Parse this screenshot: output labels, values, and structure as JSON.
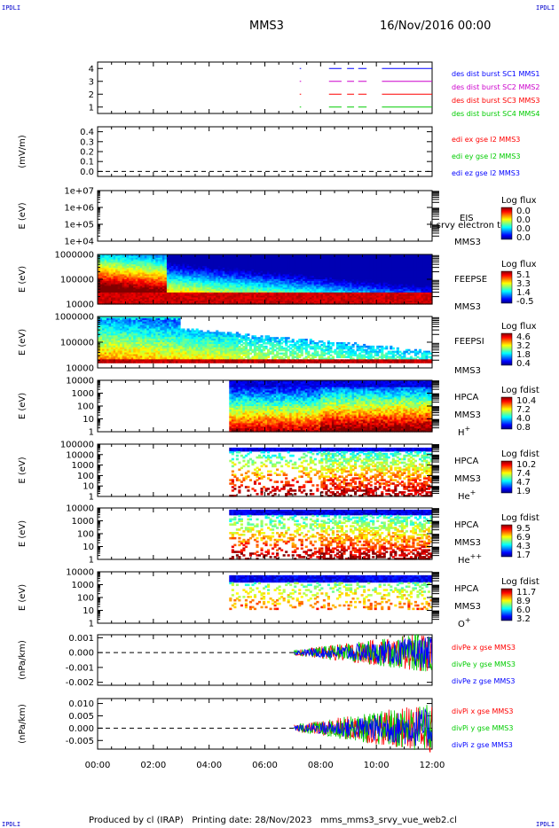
{
  "header": {
    "corner_text": "IPDLI",
    "title": "MMS3",
    "date": "16/Nov/2016 00:00"
  },
  "footer": {
    "text": "Produced by cl (IRAP)   Printing date: 28/Nov/2023   mms_mms3_srvy_vue_web2.cl"
  },
  "colors": {
    "blue": "#0000ff",
    "green": "#00cc00",
    "red": "#ff0000",
    "magenta": "#ff00ff"
  },
  "chart_data": [
    {
      "id": "burst",
      "type": "line",
      "ylim": [
        0.5,
        4.5
      ],
      "yticks": [
        "1",
        "2",
        "3",
        "4"
      ],
      "series": [
        {
          "name": "des dist burst SC1 MMS1",
          "color": "#0000ff",
          "y": 4,
          "segments": [
            [
              7.25,
              7.3
            ],
            [
              8.3,
              8.75
            ],
            [
              8.95,
              9.2
            ],
            [
              9.35,
              9.65
            ],
            [
              10.2,
              12.0
            ]
          ]
        },
        {
          "name": "des dist burst SC2 MMS2",
          "color": "#cc00cc",
          "y": 3,
          "segments": [
            [
              7.25,
              7.3
            ],
            [
              8.3,
              8.75
            ],
            [
              8.95,
              9.2
            ],
            [
              9.35,
              9.65
            ],
            [
              10.2,
              12.0
            ]
          ]
        },
        {
          "name": "des dist burst SC3 MMS3",
          "color": "#ff0000",
          "y": 2,
          "segments": [
            [
              7.25,
              7.3
            ],
            [
              8.3,
              8.75
            ],
            [
              8.95,
              9.2
            ],
            [
              9.35,
              9.65
            ],
            [
              10.2,
              12.0
            ]
          ]
        },
        {
          "name": "des dist burst SC4 MMS4",
          "color": "#00cc00",
          "y": 1,
          "segments": [
            [
              7.25,
              7.3
            ],
            [
              8.3,
              8.75
            ],
            [
              8.95,
              9.2
            ],
            [
              9.35,
              9.65
            ],
            [
              10.2,
              12.0
            ]
          ]
        }
      ]
    },
    {
      "id": "edi",
      "type": "line",
      "ylabel": "(mV/m)",
      "ylim": [
        -0.05,
        0.45
      ],
      "yticks": [
        "0.4",
        "0.3",
        "0.2",
        "0.1",
        "0.0"
      ],
      "reference_line": 0.0,
      "series": [
        {
          "name": "edi ex gse l2 MMS3",
          "color": "#ff0000"
        },
        {
          "name": "edi ey gse l2 MMS3",
          "color": "#00cc00"
        },
        {
          "name": "edi ez gse l2 MMS3",
          "color": "#0000ff"
        }
      ]
    },
    {
      "id": "eis",
      "type": "heatmap",
      "ylabel": "E (eV)",
      "yticks": [
        "1e+07",
        "1e+06",
        "1e+05",
        "1e+04"
      ],
      "instrument": "EIS",
      "overlay_text": "l_srvy electron to",
      "spacecraft": "MMS3",
      "colorbar": {
        "title": "Log flux",
        "ticks": [
          "0.0",
          "0.0",
          "0.0",
          "0.0"
        ]
      }
    },
    {
      "id": "feepse",
      "type": "heatmap",
      "ylabel": "E (eV)",
      "yticks": [
        "1000000",
        "100000",
        "10000"
      ],
      "instrument": "FEEPSE",
      "spacecraft": "MMS3",
      "data_start": 0.0,
      "colorbar": {
        "title": "Log flux",
        "ticks": [
          "5.1",
          "3.3",
          "1.4",
          "-0.5"
        ]
      }
    },
    {
      "id": "feepsi",
      "type": "heatmap",
      "ylabel": "E (eV)",
      "yticks": [
        "1000000",
        "100000",
        "10000"
      ],
      "instrument": "FEEPSI",
      "spacecraft": "MMS3",
      "data_start": 0.0,
      "colorbar": {
        "title": "Log flux",
        "ticks": [
          "4.6",
          "3.2",
          "1.8",
          "0.4"
        ]
      }
    },
    {
      "id": "hpca_h",
      "type": "heatmap",
      "ylabel": "E (eV)",
      "yticks": [
        "10000",
        "1000",
        "100",
        "10",
        "1"
      ],
      "instrument": "HPCA",
      "spacecraft": "MMS3",
      "species": "H",
      "species_sup": "+",
      "data_start": 4.75,
      "colorbar": {
        "title": "Log fdist",
        "ticks": [
          "10.4",
          "7.2",
          "4.0",
          "0.8"
        ]
      }
    },
    {
      "id": "hpca_he",
      "type": "heatmap",
      "ylabel": "E (eV)",
      "yticks": [
        "100000",
        "10000",
        "1000",
        "100",
        "10",
        "1"
      ],
      "instrument": "HPCA",
      "spacecraft": "MMS3",
      "species": "He",
      "species_sup": "+",
      "data_start": 4.75,
      "colorbar": {
        "title": "Log fdist",
        "ticks": [
          "10.2",
          "7.4",
          "4.7",
          "1.9"
        ]
      }
    },
    {
      "id": "hpca_he2",
      "type": "heatmap",
      "ylabel": "E (eV)",
      "yticks": [
        "10000",
        "1000",
        "100",
        "10",
        "1"
      ],
      "instrument": "HPCA",
      "spacecraft": "MMS3",
      "species": "He",
      "species_sup": "++",
      "data_start": 4.75,
      "colorbar": {
        "title": "Log fdist",
        "ticks": [
          "9.5",
          "6.9",
          "4.3",
          "1.7"
        ]
      }
    },
    {
      "id": "hpca_o",
      "type": "heatmap",
      "ylabel": "E (eV)",
      "yticks": [
        "10000",
        "1000",
        "100",
        "10",
        "1"
      ],
      "instrument": "HPCA",
      "spacecraft": "MMS3",
      "species": "O",
      "species_sup": "+",
      "data_start": 4.75,
      "colorbar": {
        "title": "Log fdist",
        "ticks": [
          "11.7",
          "8.9",
          "6.0",
          "3.2"
        ]
      }
    },
    {
      "id": "divpe",
      "type": "line",
      "ylabel": "(nPa/km)",
      "ylim": [
        -0.0022,
        0.0012
      ],
      "yticks": [
        "0.001",
        "0.000",
        "-0.001",
        "-0.002"
      ],
      "reference_line": 0.0,
      "data_start": 7.05,
      "series": [
        {
          "name": "divPe x gse MMS3",
          "color": "#ff0000"
        },
        {
          "name": "divPe y gse MMS3",
          "color": "#00cc00"
        },
        {
          "name": "divPe z gse MMS3",
          "color": "#0000ff"
        }
      ]
    },
    {
      "id": "divpi",
      "type": "line",
      "ylabel": "(nPa/km)",
      "ylim": [
        -0.0085,
        0.012
      ],
      "yticks": [
        "0.010",
        "0.005",
        "0.000",
        "-0.005"
      ],
      "reference_line": 0.0,
      "data_start": 7.05,
      "series": [
        {
          "name": "divPi x gse MMS3",
          "color": "#ff0000"
        },
        {
          "name": "divPi y gse MMS3",
          "color": "#00cc00"
        },
        {
          "name": "divPi z gse MMS3",
          "color": "#0000ff"
        }
      ]
    }
  ],
  "time_axis": {
    "ticks": [
      "00:00",
      "02:00",
      "04:00",
      "06:00",
      "08:00",
      "10:00",
      "12:00"
    ],
    "xlim": [
      0,
      12
    ]
  }
}
